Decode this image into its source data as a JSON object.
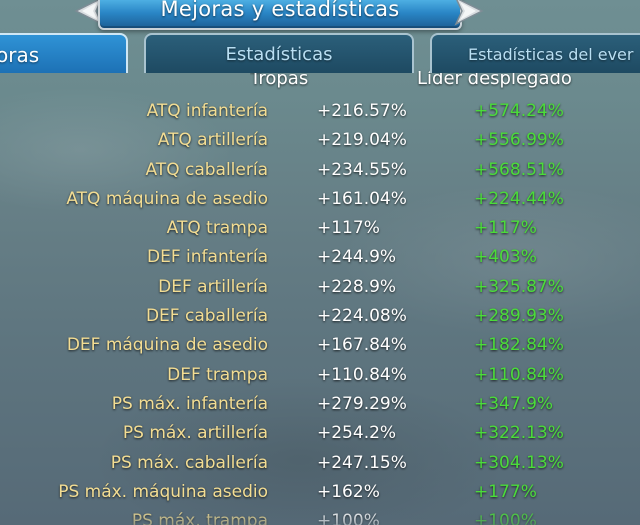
{
  "header": {
    "title": "Mejoras y estadísticas"
  },
  "tabs": [
    {
      "label": "oras",
      "active": true
    },
    {
      "label": "Estadísticas",
      "active": false
    },
    {
      "label": "Estadísticas del ever",
      "active": false
    }
  ],
  "table": {
    "column_headers": {
      "troops": "Tropas",
      "leader": "Líder desplegado"
    },
    "rows": [
      {
        "label": "ATQ infantería",
        "troops": "+216.57%",
        "leader": "+574.24%"
      },
      {
        "label": "ATQ artillería",
        "troops": "+219.04%",
        "leader": "+556.99%"
      },
      {
        "label": "ATQ caballería",
        "troops": "+234.55%",
        "leader": "+568.51%"
      },
      {
        "label": "ATQ máquina de asedio",
        "troops": "+161.04%",
        "leader": "+224.44%"
      },
      {
        "label": "ATQ trampa",
        "troops": "+117%",
        "leader": "+117%"
      },
      {
        "label": "DEF infantería",
        "troops": "+244.9%",
        "leader": "+403%"
      },
      {
        "label": "DEF artillería",
        "troops": "+228.9%",
        "leader": "+325.87%"
      },
      {
        "label": "DEF caballería",
        "troops": "+224.08%",
        "leader": "+289.93%"
      },
      {
        "label": "DEF máquina de asedio",
        "troops": "+167.84%",
        "leader": "+182.84%"
      },
      {
        "label": "DEF trampa",
        "troops": "+110.84%",
        "leader": "+110.84%"
      },
      {
        "label": "PS máx. infantería",
        "troops": "+279.29%",
        "leader": "+347.9%"
      },
      {
        "label": "PS máx. artillería",
        "troops": "+254.2%",
        "leader": "+322.13%"
      },
      {
        "label": "PS máx. caballería",
        "troops": "+247.15%",
        "leader": "+304.13%"
      },
      {
        "label": "PS máx. máquina asedio",
        "troops": "+162%",
        "leader": "+177%"
      },
      {
        "label": "PS máx. trampa",
        "troops": "+100%",
        "leader": "+100%"
      }
    ]
  },
  "colors": {
    "label_gold": "#f3dd93",
    "troops_white": "#ffffff",
    "leader_green": "#4bdc3a",
    "banner_blue": "#2a86c6"
  },
  "icons": {
    "prev": "chevron-left-icon",
    "next": "chevron-right-icon"
  }
}
